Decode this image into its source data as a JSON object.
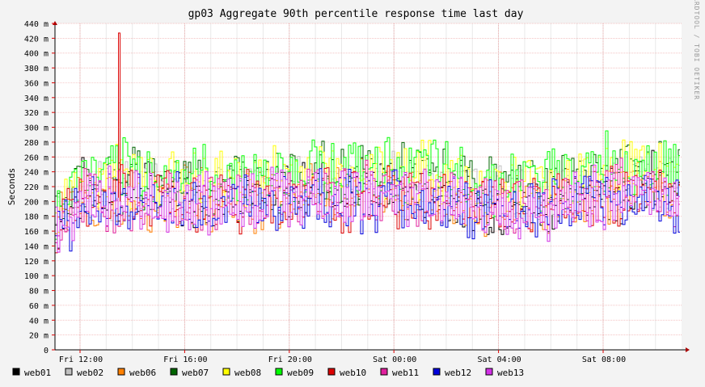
{
  "chart_data": {
    "type": "line",
    "title": "gp03 Aggregate 90th percentile response time last day",
    "ylabel": "Seconds",
    "xlabel": "",
    "watermark": "RRDTOOL / TOBI OETIKER",
    "ylim": [
      0,
      0.44
    ],
    "y_ticks": [
      {
        "value": 0,
        "label": "0"
      },
      {
        "value": 0.02,
        "label": "20 m"
      },
      {
        "value": 0.04,
        "label": "40 m"
      },
      {
        "value": 0.06,
        "label": "60 m"
      },
      {
        "value": 0.08,
        "label": "80 m"
      },
      {
        "value": 0.1,
        "label": "100 m"
      },
      {
        "value": 0.12,
        "label": "120 m"
      },
      {
        "value": 0.14,
        "label": "140 m"
      },
      {
        "value": 0.16,
        "label": "160 m"
      },
      {
        "value": 0.18,
        "label": "180 m"
      },
      {
        "value": 0.2,
        "label": "200 m"
      },
      {
        "value": 0.22,
        "label": "220 m"
      },
      {
        "value": 0.24,
        "label": "240 m"
      },
      {
        "value": 0.26,
        "label": "260 m"
      },
      {
        "value": 0.28,
        "label": "280 m"
      },
      {
        "value": 0.3,
        "label": "300 m"
      },
      {
        "value": 0.32,
        "label": "320 m"
      },
      {
        "value": 0.34,
        "label": "340 m"
      },
      {
        "value": 0.36,
        "label": "360 m"
      },
      {
        "value": 0.38,
        "label": "380 m"
      },
      {
        "value": 0.4,
        "label": "400 m"
      },
      {
        "value": 0.42,
        "label": "420 m"
      },
      {
        "value": 0.44,
        "label": "440 m"
      }
    ],
    "x_ticks": [
      "Fri 12:00",
      "Fri 16:00",
      "Fri 20:00",
      "Sat 00:00",
      "Sat 04:00",
      "Sat 08:00"
    ],
    "x": [
      "Fri 11:00",
      "Fri 12:00",
      "Fri 13:00",
      "Fri 14:00",
      "Fri 15:00",
      "Fri 16:00",
      "Fri 17:00",
      "Fri 18:00",
      "Fri 19:00",
      "Fri 20:00",
      "Fri 21:00",
      "Fri 22:00",
      "Fri 23:00",
      "Sat 00:00",
      "Sat 01:00",
      "Sat 02:00",
      "Sat 03:00",
      "Sat 04:00",
      "Sat 05:00",
      "Sat 06:00",
      "Sat 07:00",
      "Sat 08:00",
      "Sat 09:00",
      "Sat 10:00",
      "Sat 11:00"
    ],
    "grid": true,
    "legend_position": "bottom",
    "series": [
      {
        "name": "web01",
        "color": "#000000",
        "values": [
          0.165,
          0.215,
          0.205,
          0.21,
          0.215,
          0.21,
          0.205,
          0.215,
          0.21,
          0.215,
          0.225,
          0.215,
          0.22,
          0.215,
          0.215,
          0.21,
          0.2,
          0.195,
          0.2,
          0.195,
          0.21,
          0.215,
          0.22,
          0.225,
          0.21
        ]
      },
      {
        "name": "web02",
        "color": "#c0c0c0",
        "values": [
          0.17,
          0.22,
          0.215,
          0.22,
          0.22,
          0.225,
          0.215,
          0.22,
          0.215,
          0.22,
          0.225,
          0.225,
          0.22,
          0.225,
          0.22,
          0.215,
          0.21,
          0.205,
          0.205,
          0.205,
          0.215,
          0.225,
          0.225,
          0.23,
          0.22
        ]
      },
      {
        "name": "web06",
        "color": "#ff8000",
        "values": [
          0.168,
          0.205,
          0.2,
          0.205,
          0.205,
          0.205,
          0.2,
          0.205,
          0.205,
          0.21,
          0.215,
          0.21,
          0.21,
          0.21,
          0.21,
          0.205,
          0.2,
          0.195,
          0.195,
          0.195,
          0.205,
          0.21,
          0.215,
          0.215,
          0.205
        ]
      },
      {
        "name": "web07",
        "color": "#006400",
        "values": [
          0.17,
          0.235,
          0.225,
          0.23,
          0.23,
          0.225,
          0.225,
          0.23,
          0.225,
          0.235,
          0.24,
          0.235,
          0.235,
          0.235,
          0.235,
          0.23,
          0.22,
          0.215,
          0.22,
          0.22,
          0.235,
          0.24,
          0.245,
          0.24,
          0.235
        ]
      },
      {
        "name": "web08",
        "color": "#ffff00",
        "values": [
          0.175,
          0.235,
          0.23,
          0.235,
          0.235,
          0.23,
          0.225,
          0.235,
          0.23,
          0.235,
          0.245,
          0.24,
          0.24,
          0.24,
          0.24,
          0.235,
          0.225,
          0.22,
          0.225,
          0.225,
          0.235,
          0.245,
          0.25,
          0.245,
          0.235
        ]
      },
      {
        "name": "web09",
        "color": "#00ff00",
        "values": [
          0.175,
          0.24,
          0.235,
          0.24,
          0.24,
          0.235,
          0.23,
          0.24,
          0.235,
          0.24,
          0.25,
          0.245,
          0.245,
          0.245,
          0.245,
          0.24,
          0.23,
          0.225,
          0.23,
          0.23,
          0.24,
          0.25,
          0.255,
          0.25,
          0.24
        ]
      },
      {
        "name": "web10",
        "color": "#dc0000",
        "values": [
          0.165,
          0.2,
          0.205,
          0.2,
          0.205,
          0.2,
          0.2,
          0.205,
          0.2,
          0.205,
          0.21,
          0.205,
          0.205,
          0.205,
          0.205,
          0.2,
          0.195,
          0.19,
          0.195,
          0.195,
          0.2,
          0.205,
          0.21,
          0.21,
          0.2
        ]
      },
      {
        "name": "web11",
        "color": "#e0209d",
        "values": [
          0.16,
          0.205,
          0.2,
          0.205,
          0.205,
          0.205,
          0.2,
          0.205,
          0.205,
          0.21,
          0.215,
          0.21,
          0.21,
          0.21,
          0.21,
          0.205,
          0.2,
          0.195,
          0.195,
          0.195,
          0.205,
          0.21,
          0.215,
          0.215,
          0.205
        ]
      },
      {
        "name": "web12",
        "color": "#0000dc",
        "values": [
          0.16,
          0.195,
          0.195,
          0.2,
          0.2,
          0.195,
          0.195,
          0.2,
          0.195,
          0.2,
          0.205,
          0.2,
          0.2,
          0.2,
          0.2,
          0.195,
          0.19,
          0.185,
          0.19,
          0.19,
          0.195,
          0.2,
          0.205,
          0.205,
          0.195
        ]
      },
      {
        "name": "web13",
        "color": "#d230e6",
        "values": [
          0.16,
          0.2,
          0.2,
          0.2,
          0.205,
          0.2,
          0.2,
          0.205,
          0.2,
          0.205,
          0.21,
          0.205,
          0.205,
          0.205,
          0.205,
          0.2,
          0.195,
          0.19,
          0.195,
          0.19,
          0.2,
          0.205,
          0.21,
          0.21,
          0.2
        ]
      }
    ],
    "annotations": [
      {
        "series": "web10",
        "x": "Fri 13:30",
        "value": 0.427,
        "note": "spike"
      }
    ]
  }
}
